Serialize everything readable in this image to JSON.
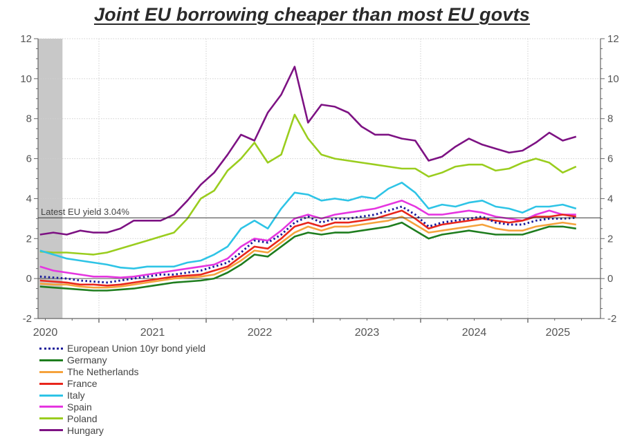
{
  "chart_data": {
    "type": "line",
    "title": "Joint EU borrowing cheaper than most EU govts",
    "xlabel": "",
    "ylabel": "",
    "ylim": [
      -2,
      12
    ],
    "xlim": [
      2020.43,
      2025.55
    ],
    "y_ticks": [
      "-2",
      "0",
      "2",
      "4",
      "6",
      "8",
      "10",
      "12"
    ],
    "y_tick_values": [
      -2,
      0,
      2,
      4,
      6,
      8,
      10,
      12
    ],
    "x_tick_labels": [
      "2020",
      "2021",
      "2022",
      "2023",
      "2024",
      "2025"
    ],
    "x_tick_label_positions": [
      2020.5,
      2021.5,
      2022.5,
      2023.5,
      2024.5,
      2025.28
    ],
    "year_boundaries": [
      2021,
      2022,
      2023,
      2024,
      2025
    ],
    "grid": true,
    "secondary_y_axis_mirrors_primary": true,
    "shaded_region": {
      "from": 2020.43,
      "to": 2020.66,
      "color": "#c8c8c8",
      "meaning": "recession"
    },
    "reference_line": {
      "y": 3.04,
      "label": "Latest EU yield 3.04%"
    },
    "legend_position": "bottom-left",
    "x": [
      2020.45,
      2020.575,
      2020.7,
      2020.825,
      2020.95,
      2021.075,
      2021.2,
      2021.325,
      2021.45,
      2021.575,
      2021.7,
      2021.825,
      2021.95,
      2022.075,
      2022.2,
      2022.325,
      2022.45,
      2022.575,
      2022.7,
      2022.825,
      2022.95,
      2023.075,
      2023.2,
      2023.325,
      2023.45,
      2023.575,
      2023.7,
      2023.825,
      2023.95,
      2024.075,
      2024.2,
      2024.325,
      2024.45,
      2024.575,
      2024.7,
      2024.825,
      2024.95,
      2025.075,
      2025.2,
      2025.325,
      2025.45
    ],
    "series": [
      {
        "name": "European Union 10yr bond yield",
        "color": "#1a1a9a",
        "dashed": true,
        "values": [
          0.1,
          0.05,
          0.0,
          -0.1,
          -0.15,
          -0.2,
          -0.1,
          0.0,
          0.1,
          0.2,
          0.2,
          0.3,
          0.4,
          0.6,
          0.8,
          1.3,
          1.9,
          1.8,
          2.2,
          2.8,
          3.1,
          2.8,
          3.0,
          3.0,
          3.1,
          3.2,
          3.4,
          3.6,
          3.2,
          2.6,
          2.8,
          2.9,
          3.0,
          3.1,
          2.8,
          2.7,
          2.7,
          2.9,
          3.0,
          3.0,
          3.04
        ]
      },
      {
        "name": "Germany",
        "color": "#1e7d1e",
        "dashed": false,
        "values": [
          -0.4,
          -0.45,
          -0.5,
          -0.55,
          -0.6,
          -0.6,
          -0.55,
          -0.5,
          -0.4,
          -0.3,
          -0.2,
          -0.15,
          -0.1,
          0.0,
          0.3,
          0.7,
          1.2,
          1.1,
          1.6,
          2.1,
          2.3,
          2.2,
          2.3,
          2.3,
          2.4,
          2.5,
          2.6,
          2.8,
          2.4,
          2.0,
          2.2,
          2.3,
          2.4,
          2.3,
          2.2,
          2.2,
          2.2,
          2.4,
          2.6,
          2.6,
          2.5
        ]
      },
      {
        "name": "The Netherlands",
        "color": "#f5a23c",
        "dashed": false,
        "values": [
          -0.25,
          -0.3,
          -0.3,
          -0.4,
          -0.45,
          -0.45,
          -0.4,
          -0.3,
          -0.2,
          -0.1,
          0.0,
          0.05,
          0.1,
          0.2,
          0.5,
          0.9,
          1.4,
          1.3,
          1.8,
          2.3,
          2.6,
          2.4,
          2.6,
          2.6,
          2.7,
          2.8,
          2.9,
          3.1,
          2.7,
          2.3,
          2.4,
          2.5,
          2.6,
          2.7,
          2.5,
          2.4,
          2.4,
          2.6,
          2.7,
          2.8,
          2.7
        ]
      },
      {
        "name": "France",
        "color": "#e8261c",
        "dashed": false,
        "values": [
          -0.1,
          -0.15,
          -0.2,
          -0.3,
          -0.3,
          -0.35,
          -0.3,
          -0.2,
          -0.1,
          0.0,
          0.1,
          0.15,
          0.2,
          0.4,
          0.6,
          1.1,
          1.6,
          1.5,
          2.0,
          2.6,
          2.8,
          2.6,
          2.8,
          2.8,
          2.9,
          3.0,
          3.2,
          3.4,
          3.0,
          2.5,
          2.7,
          2.8,
          2.9,
          3.0,
          2.9,
          2.8,
          2.9,
          3.1,
          3.1,
          3.2,
          3.1
        ]
      },
      {
        "name": "Italy",
        "color": "#2ec4e6",
        "dashed": false,
        "values": [
          1.4,
          1.2,
          1.0,
          0.9,
          0.8,
          0.7,
          0.55,
          0.5,
          0.6,
          0.6,
          0.6,
          0.8,
          0.9,
          1.2,
          1.6,
          2.5,
          2.9,
          2.5,
          3.5,
          4.3,
          4.2,
          3.9,
          4.0,
          3.9,
          4.1,
          4.0,
          4.5,
          4.8,
          4.3,
          3.5,
          3.7,
          3.6,
          3.8,
          3.9,
          3.6,
          3.5,
          3.3,
          3.6,
          3.6,
          3.7,
          3.5
        ]
      },
      {
        "name": "Spain",
        "color": "#e535e0",
        "dashed": false,
        "values": [
          0.6,
          0.4,
          0.3,
          0.2,
          0.1,
          0.1,
          0.05,
          0.1,
          0.2,
          0.3,
          0.4,
          0.5,
          0.6,
          0.7,
          1.0,
          1.6,
          2.0,
          1.9,
          2.4,
          3.0,
          3.2,
          3.0,
          3.2,
          3.3,
          3.4,
          3.5,
          3.7,
          3.9,
          3.6,
          3.2,
          3.2,
          3.3,
          3.4,
          3.3,
          3.1,
          3.0,
          2.9,
          3.2,
          3.4,
          3.2,
          3.2
        ]
      },
      {
        "name": "Poland",
        "color": "#9acd1e",
        "dashed": false,
        "values": [
          1.35,
          1.3,
          1.3,
          1.25,
          1.2,
          1.3,
          1.5,
          1.7,
          1.9,
          2.1,
          2.3,
          3.0,
          4.0,
          4.4,
          5.4,
          6.0,
          6.8,
          5.8,
          6.2,
          8.2,
          7.0,
          6.2,
          6.0,
          5.9,
          5.8,
          5.7,
          5.6,
          5.5,
          5.5,
          5.1,
          5.3,
          5.6,
          5.7,
          5.7,
          5.4,
          5.5,
          5.8,
          6.0,
          5.8,
          5.3,
          5.6
        ]
      },
      {
        "name": "Hungary",
        "color": "#7d1283",
        "dashed": false,
        "values": [
          2.2,
          2.3,
          2.2,
          2.4,
          2.3,
          2.3,
          2.5,
          2.9,
          2.9,
          2.9,
          3.2,
          3.9,
          4.7,
          5.3,
          6.2,
          7.2,
          6.9,
          8.3,
          9.2,
          10.6,
          7.8,
          8.7,
          8.6,
          8.3,
          7.6,
          7.2,
          7.2,
          7.0,
          6.9,
          5.9,
          6.1,
          6.6,
          7.0,
          6.7,
          6.5,
          6.3,
          6.4,
          6.8,
          7.3,
          6.9,
          7.1
        ]
      }
    ]
  }
}
